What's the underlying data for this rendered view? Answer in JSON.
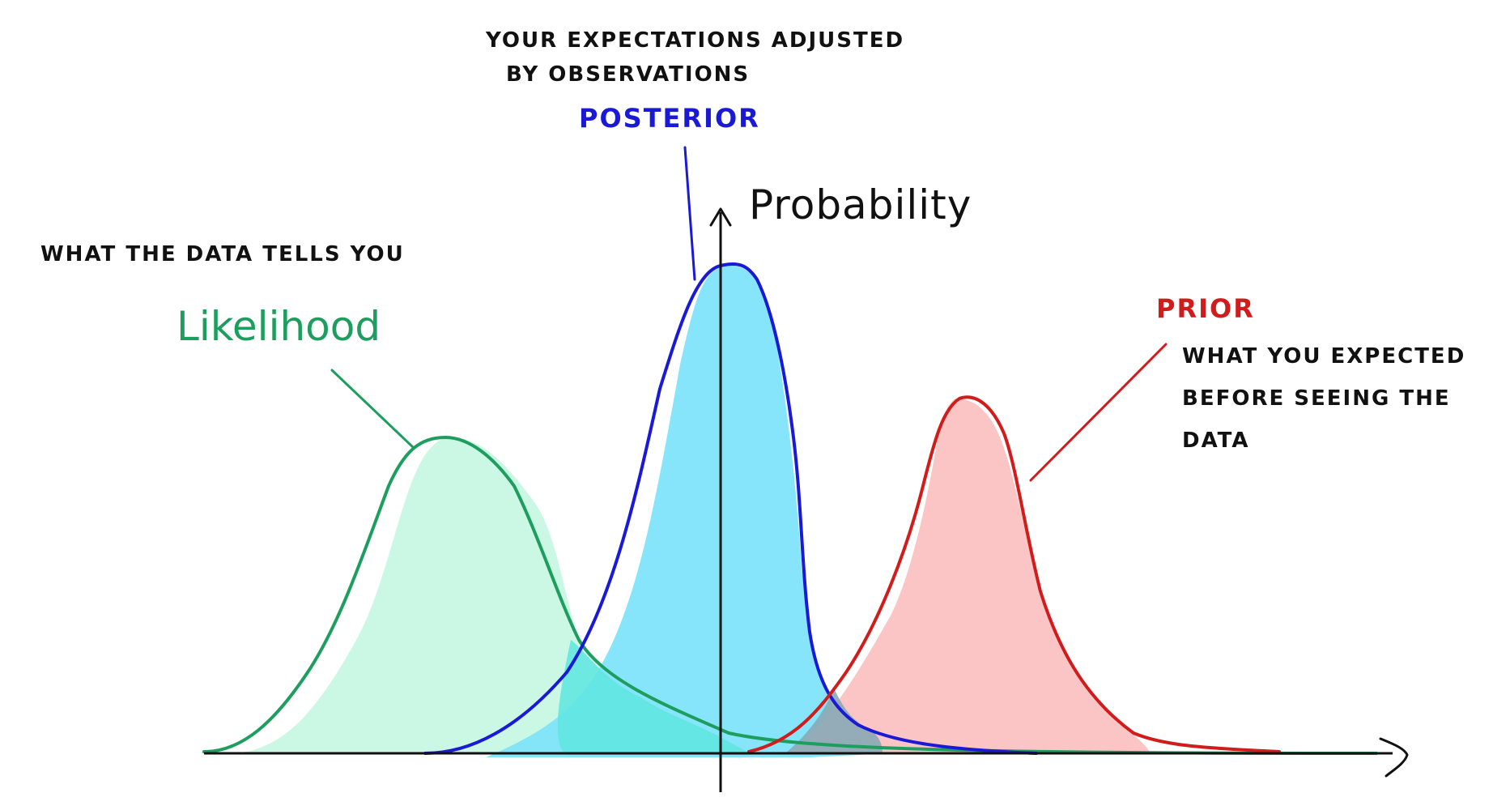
{
  "axes": {
    "y_label": "Probability"
  },
  "likelihood": {
    "label": "Likelihood",
    "description": "WHAT THE DATA TELLS YOU",
    "fill": "#c8f8e4",
    "stroke": "#1e9e5e"
  },
  "posterior": {
    "label": "POSTERIOR",
    "description_line1": "YOUR EXPECTATIONS ADJUSTED",
    "description_line2": "BY OBSERVATIONS",
    "fill": "#7fe4fa",
    "stroke": "#1a1ad6"
  },
  "prior": {
    "label": "PRIOR",
    "description_line1": "WHAT YOU EXPECTED",
    "description_line2": "BEFORE SEEING THE",
    "description_line3": "DATA",
    "fill": "#fcc2c2",
    "stroke": "#d11c1c"
  }
}
